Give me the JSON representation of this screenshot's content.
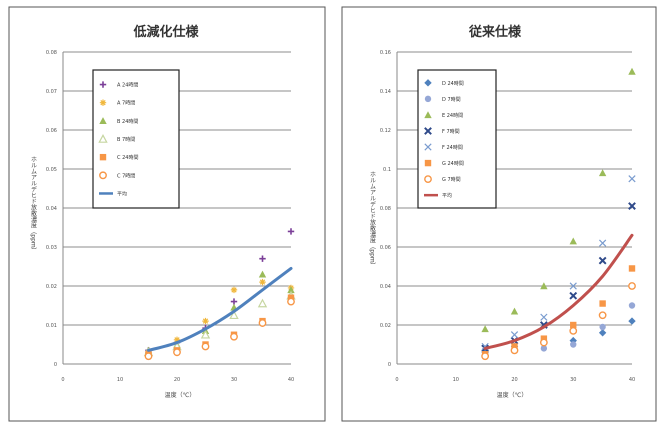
{
  "chart_data": [
    {
      "type": "scatter",
      "title": "低減化仕様",
      "xlabel": "温度（℃）",
      "ylabel": "ホルムアルデヒド放散濃度（ppm）",
      "xlim": [
        0,
        40
      ],
      "ylim": [
        0,
        0.08
      ],
      "x_ticks": [
        "0",
        "10",
        "20",
        "30",
        "40"
      ],
      "y_ticks": [
        "0",
        "0.01",
        "0.02",
        "0.03",
        "0.04",
        "0.05",
        "0.06",
        "0.07",
        "0.08"
      ],
      "grid": true,
      "legend_placement": "top-left",
      "series": [
        {
          "name": "A 24時間",
          "marker": "cross",
          "color": "#7b3f98",
          "points": [
            [
              15,
              0.0035
            ],
            [
              20,
              0.0055
            ],
            [
              25,
              0.0092
            ],
            [
              30,
              0.016
            ],
            [
              35,
              0.027
            ],
            [
              40,
              0.034
            ]
          ]
        },
        {
          "name": "A 7時間",
          "marker": "star",
          "color": "#f0b73c",
          "points": [
            [
              15,
              0.003
            ],
            [
              20,
              0.0062
            ],
            [
              25,
              0.011
            ],
            [
              30,
              0.019
            ],
            [
              35,
              0.021
            ],
            [
              40,
              0.0195
            ]
          ]
        },
        {
          "name": "B 24時間",
          "marker": "triangle",
          "color": "#9bbb59",
          "points": [
            [
              15,
              0.0035
            ],
            [
              20,
              0.005
            ],
            [
              25,
              0.0085
            ],
            [
              30,
              0.0145
            ],
            [
              35,
              0.023
            ],
            [
              40,
              0.019
            ]
          ]
        },
        {
          "name": "B 7時間",
          "marker": "triangle-outline",
          "color": "#c6d6a1",
          "points": [
            [
              15,
              0.003
            ],
            [
              20,
              0.0045
            ],
            [
              25,
              0.0075
            ],
            [
              30,
              0.0125
            ],
            [
              35,
              0.0155
            ],
            [
              40,
              0.0175
            ]
          ]
        },
        {
          "name": "C 24時間",
          "marker": "square",
          "color": "#f79646",
          "points": [
            [
              15,
              0.0025
            ],
            [
              20,
              0.0035
            ],
            [
              25,
              0.005
            ],
            [
              30,
              0.0075
            ],
            [
              35,
              0.011
            ],
            [
              40,
              0.017
            ]
          ]
        },
        {
          "name": "C 7時間",
          "marker": "circle-outline",
          "color": "#f79646",
          "points": [
            [
              15,
              0.002
            ],
            [
              20,
              0.003
            ],
            [
              25,
              0.0045
            ],
            [
              30,
              0.007
            ],
            [
              35,
              0.0105
            ],
            [
              40,
              0.016
            ]
          ]
        },
        {
          "name": "平均",
          "type": "line",
          "color": "#4f81bd",
          "points": [
            [
              15,
              0.0035
            ],
            [
              20,
              0.0055
            ],
            [
              25,
              0.009
            ],
            [
              30,
              0.0135
            ],
            [
              35,
              0.019
            ],
            [
              40,
              0.0245
            ]
          ]
        }
      ]
    },
    {
      "type": "scatter",
      "title": "従来仕様",
      "xlabel": "温度（℃）",
      "ylabel": "ホルムアルデヒド放散濃度（ppm）",
      "xlim": [
        0,
        40
      ],
      "ylim": [
        0,
        0.16
      ],
      "x_ticks": [
        "0",
        "10",
        "20",
        "30",
        "40"
      ],
      "y_ticks": [
        "0",
        "0.02",
        "0.04",
        "0.06",
        "0.08",
        "0.1",
        "0.12",
        "0.14",
        "0.16"
      ],
      "grid": true,
      "legend_placement": "top-left",
      "series": [
        {
          "name": "D 24時間",
          "marker": "diamond",
          "color": "#4f81bd",
          "points": [
            [
              15,
              0.006
            ],
            [
              20,
              0.009
            ],
            [
              25,
              0.011
            ],
            [
              30,
              0.012
            ],
            [
              35,
              0.016
            ],
            [
              40,
              0.022
            ]
          ]
        },
        {
          "name": "D 7時間",
          "marker": "circle",
          "color": "#95a7d6",
          "points": [
            [
              15,
              0.005
            ],
            [
              20,
              0.008
            ],
            [
              25,
              0.008
            ],
            [
              30,
              0.01
            ],
            [
              35,
              0.019
            ],
            [
              40,
              0.03
            ]
          ]
        },
        {
          "name": "E 24時間",
          "marker": "triangle",
          "color": "#9bbb59",
          "points": [
            [
              15,
              0.018
            ],
            [
              20,
              0.027
            ],
            [
              25,
              0.04
            ],
            [
              30,
              0.063
            ],
            [
              35,
              0.098
            ],
            [
              40,
              0.15
            ]
          ]
        },
        {
          "name": "F 7時間",
          "marker": "x",
          "color": "#2f4a8a",
          "points": [
            [
              15,
              0.008
            ],
            [
              20,
              0.012
            ],
            [
              25,
              0.02
            ],
            [
              30,
              0.035
            ],
            [
              35,
              0.053
            ],
            [
              40,
              0.081
            ]
          ]
        },
        {
          "name": "F 24時間",
          "marker": "x-light",
          "color": "#7a9ccf",
          "points": [
            [
              15,
              0.009
            ],
            [
              20,
              0.015
            ],
            [
              25,
              0.024
            ],
            [
              30,
              0.04
            ],
            [
              35,
              0.062
            ],
            [
              40,
              0.095
            ]
          ]
        },
        {
          "name": "G 24時間",
          "marker": "square",
          "color": "#f79646",
          "points": [
            [
              15,
              0.005
            ],
            [
              20,
              0.009
            ],
            [
              25,
              0.013
            ],
            [
              30,
              0.02
            ],
            [
              35,
              0.031
            ],
            [
              40,
              0.049
            ]
          ]
        },
        {
          "name": "G 7時間",
          "marker": "circle-outline",
          "color": "#f79646",
          "points": [
            [
              15,
              0.004
            ],
            [
              20,
              0.007
            ],
            [
              25,
              0.011
            ],
            [
              30,
              0.017
            ],
            [
              35,
              0.025
            ],
            [
              40,
              0.04
            ]
          ]
        },
        {
          "name": "平均",
          "type": "line",
          "color": "#c0504d",
          "points": [
            [
              15,
              0.008
            ],
            [
              20,
              0.012
            ],
            [
              25,
              0.019
            ],
            [
              30,
              0.03
            ],
            [
              35,
              0.045
            ],
            [
              40,
              0.066
            ]
          ]
        }
      ]
    }
  ]
}
